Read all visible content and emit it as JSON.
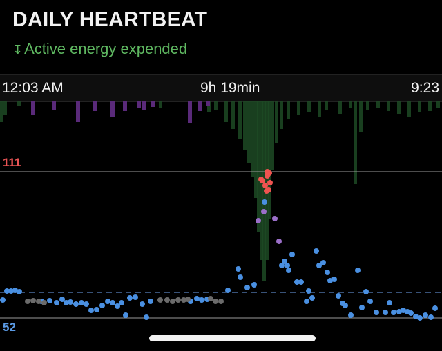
{
  "header": {
    "title": "DAILY HEARTBEAT",
    "subtitle_icon": "down-arrow-icon",
    "subtitle": "Active energy expended"
  },
  "timebar": {
    "start": "12:03 AM",
    "duration": "9h 19min",
    "end": "9:23"
  },
  "chart_data": {
    "type": "scatter",
    "title": "",
    "xlabel": "",
    "ylabel": "",
    "reference_lines": {
      "high": 111,
      "low": 52
    },
    "high_label": "111",
    "low_label": "52",
    "colors": {
      "high": "#ea5455",
      "low": "#5b9be6",
      "normal_point": "#4a90e2",
      "inactive_point": "#6b6b6b",
      "elevated_point": "#9b6fc9",
      "peak_point": "#ef5350",
      "energy_bar": "#1d4a25",
      "energy_bar_alt": "#5a2a7a"
    }
  }
}
